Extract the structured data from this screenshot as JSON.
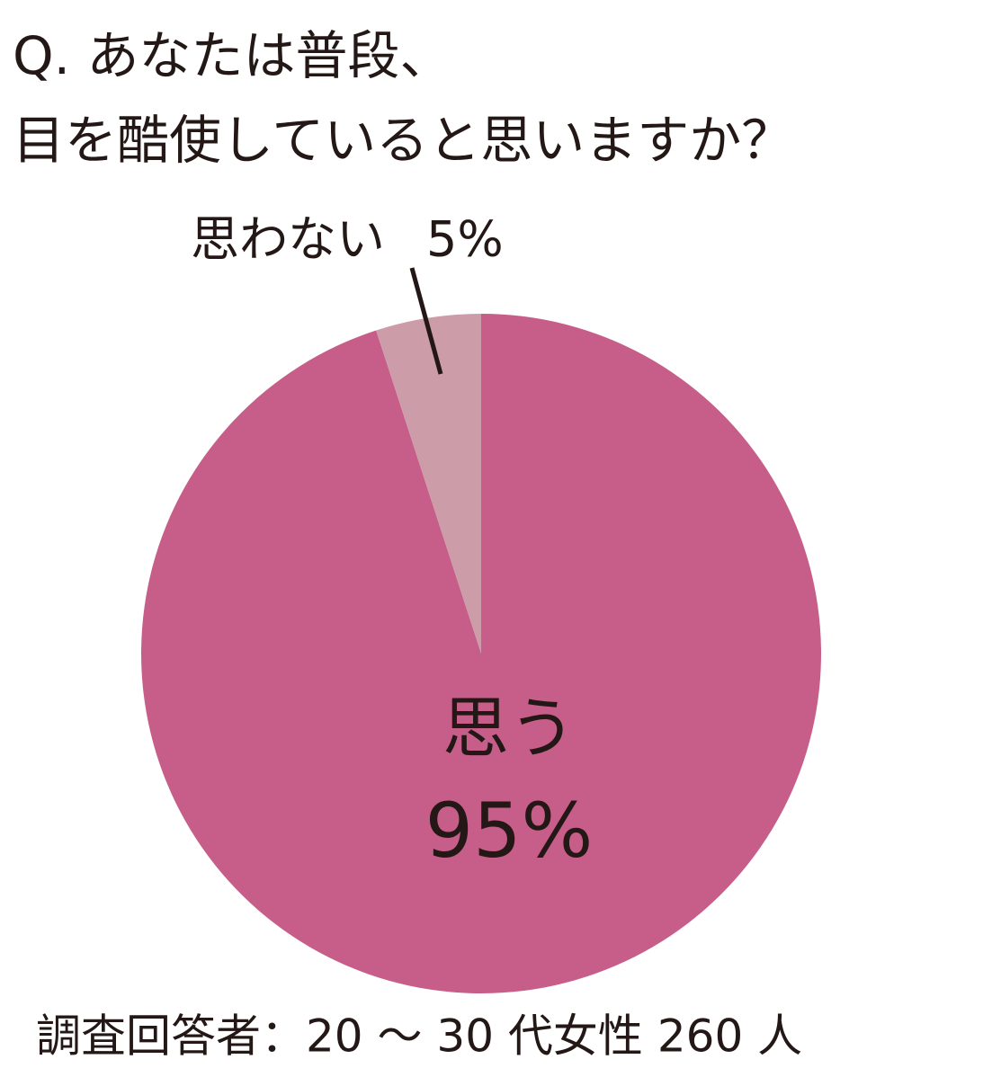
{
  "chart_data": {
    "type": "pie",
    "title": [
      "Q. あなたは普段、",
      "目を酷使していると思いますか？"
    ],
    "categories": [
      "思う",
      "思わない"
    ],
    "values": [
      95,
      5
    ],
    "value_labels": [
      "95%",
      "5%"
    ],
    "colors": [
      "#c75e8a",
      "#cc9ca9"
    ],
    "note": "調査回答者：20 ～ 30 代女性 260 人"
  }
}
